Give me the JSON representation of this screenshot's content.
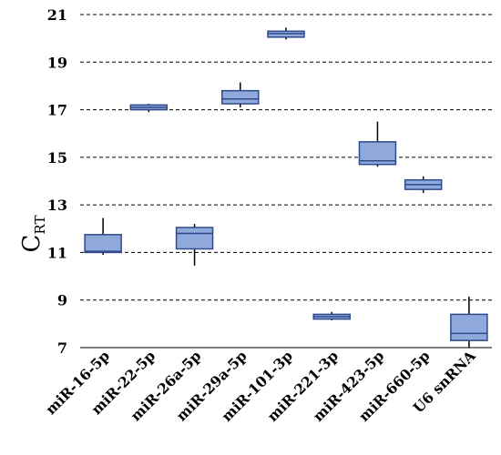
{
  "chart_data": {
    "type": "boxplot",
    "title": "",
    "ylabel": "C",
    "ylabel_subscript": "RT",
    "ylim": [
      7,
      21
    ],
    "yticks": [
      7,
      9,
      11,
      13,
      15,
      17,
      19,
      21
    ],
    "grid": "dashed-horizontal",
    "categories": [
      "miR-16-5p",
      "miR-22-5p",
      "miR-26a-5p",
      "miR-29a-5p",
      "miR-101-3p",
      "miR-221-3p",
      "miR-423-5p",
      "miR-660-5p",
      "U6 snRNA"
    ],
    "boxes": [
      {
        "min": 10.9,
        "q1": 11.0,
        "median": 11.05,
        "q3": 11.75,
        "max": 12.45
      },
      {
        "min": 16.9,
        "q1": 17.0,
        "median": 17.1,
        "q3": 17.2,
        "max": 17.25
      },
      {
        "min": 10.45,
        "q1": 11.15,
        "median": 11.8,
        "q3": 12.05,
        "max": 12.2
      },
      {
        "min": 17.1,
        "q1": 17.25,
        "median": 17.45,
        "q3": 17.8,
        "max": 18.15
      },
      {
        "min": 19.95,
        "q1": 20.05,
        "median": 20.2,
        "q3": 20.3,
        "max": 20.45
      },
      {
        "min": 8.15,
        "q1": 8.2,
        "median": 8.3,
        "q3": 8.4,
        "max": 8.5
      },
      {
        "min": 14.6,
        "q1": 14.7,
        "median": 14.85,
        "q3": 15.65,
        "max": 16.5
      },
      {
        "min": 13.5,
        "q1": 13.65,
        "median": 13.85,
        "q3": 14.05,
        "max": 14.2
      },
      {
        "min": 7.0,
        "q1": 7.3,
        "median": 7.6,
        "q3": 8.4,
        "max": 9.15
      }
    ],
    "colors": {
      "box_fill": "#8fa9dc",
      "box_stroke": "#2f4a8a",
      "grid": "#000000"
    }
  }
}
